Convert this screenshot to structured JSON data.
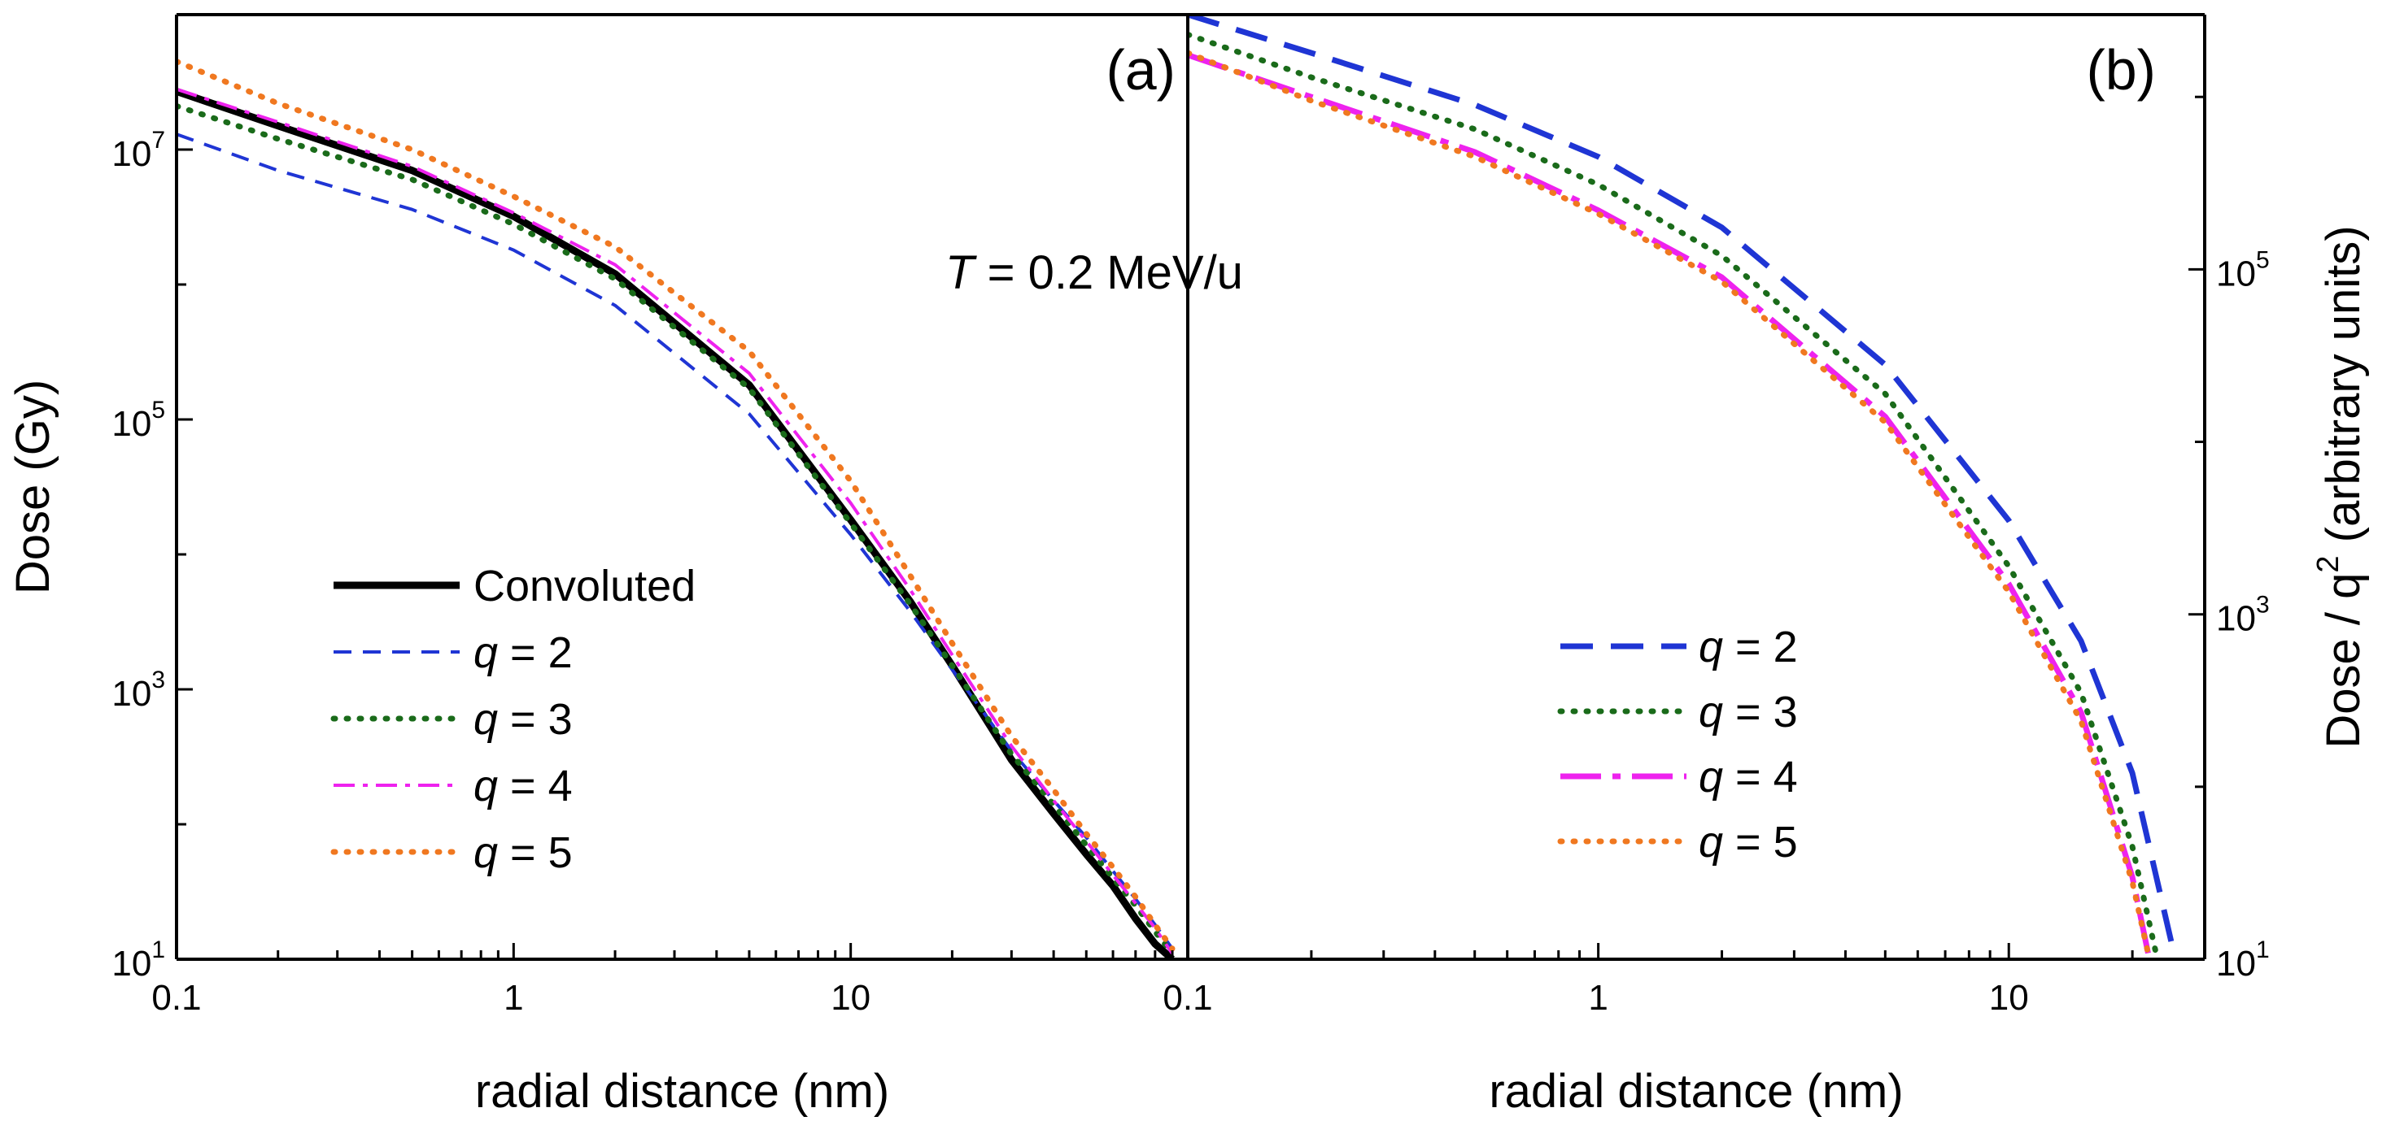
{
  "chart_data": [
    {
      "id": "a",
      "type": "line",
      "panel_label": "(a)",
      "xlabel": "radial distance (nm)",
      "ylabel": "Dose (Gy)",
      "xscale": "log",
      "yscale": "log",
      "xlim": [
        0.1,
        100
      ],
      "ylim": [
        10,
        100000000
      ],
      "xticks": [
        {
          "value": 0.1,
          "label": "0.1"
        },
        {
          "value": 1,
          "label": "1"
        },
        {
          "value": 10,
          "label": "10"
        }
      ],
      "yticks": [
        {
          "value": 10,
          "base": "10",
          "exp": "1"
        },
        {
          "value": 1000,
          "base": "10",
          "exp": "3"
        },
        {
          "value": 100000,
          "base": "10",
          "exp": "5"
        },
        {
          "value": 10000000,
          "base": "10",
          "exp": "7"
        }
      ],
      "annotation": {
        "italic": "T",
        "text": " = 0.2 MeV/u"
      },
      "legend_position": "lower-left",
      "series": [
        {
          "name": "Convoluted",
          "legend_text": "Convoluted",
          "legend_q": false,
          "color": "#000000",
          "style": "solid",
          "width": 9,
          "x": [
            0.1,
            0.2,
            0.5,
            1,
            2,
            5,
            10,
            15,
            20,
            30,
            40,
            50,
            60,
            70,
            80,
            90
          ],
          "y": [
            27000000,
            15000000,
            7000000,
            3200000,
            1200000,
            180000,
            18000,
            4500,
            1500,
            300,
            120,
            60,
            35,
            20,
            13,
            10
          ]
        },
        {
          "name": "q = 2",
          "legend_text": " = 2",
          "legend_q": true,
          "color": "#1f35d4",
          "style": "dash-short",
          "width": 4,
          "x": [
            0.1,
            0.2,
            0.5,
            1,
            2,
            5,
            10,
            15,
            20,
            30,
            40,
            50,
            60,
            70,
            80,
            90
          ],
          "y": [
            13000000,
            7000000,
            3600000,
            1800000,
            700000,
            110000,
            14000,
            3800,
            1400,
            350,
            150,
            80,
            45,
            28,
            18,
            12
          ]
        },
        {
          "name": "q = 3",
          "legend_text": " = 3",
          "legend_q": true,
          "color": "#1a6b1a",
          "style": "dot",
          "width": 7,
          "x": [
            0.1,
            0.2,
            0.5,
            1,
            2,
            5,
            10,
            15,
            20,
            30,
            40,
            50,
            60,
            70,
            80,
            90
          ],
          "y": [
            21000000,
            12000000,
            6000000,
            2800000,
            1100000,
            170000,
            17000,
            4300,
            1500,
            330,
            140,
            70,
            40,
            25,
            16,
            11
          ]
        },
        {
          "name": "q = 4",
          "legend_text": " = 4",
          "legend_q": true,
          "color": "#ee22ee",
          "style": "dashdot",
          "width": 4,
          "x": [
            0.1,
            0.2,
            0.5,
            1,
            2,
            5,
            10,
            15,
            20,
            30,
            40,
            50,
            60,
            70,
            80,
            90
          ],
          "y": [
            28000000,
            16000000,
            7500000,
            3400000,
            1400000,
            220000,
            24000,
            5500,
            1800,
            380,
            150,
            75,
            42,
            26,
            17,
            11
          ]
        },
        {
          "name": "q = 5",
          "legend_text": " = 5",
          "legend_q": true,
          "color": "#f07820",
          "style": "dot",
          "width": 7,
          "x": [
            0.1,
            0.2,
            0.5,
            1,
            2,
            5,
            10,
            15,
            20,
            30,
            40,
            50,
            60,
            70,
            80,
            90
          ],
          "y": [
            45000000,
            22000000,
            10000000,
            4500000,
            1900000,
            320000,
            35000,
            7000,
            2200,
            450,
            180,
            85,
            48,
            29,
            18,
            12
          ]
        }
      ]
    },
    {
      "id": "b",
      "type": "line",
      "panel_label": "(b)",
      "xlabel": "radial distance (nm)",
      "ylabel_prefix": "Dose / q",
      "ylabel_sup": "2",
      "ylabel_suffix": " (arbitrary units)",
      "xscale": "log",
      "yscale": "log",
      "xlim": [
        0.1,
        30
      ],
      "ylim": [
        10,
        3000000
      ],
      "xticks": [
        {
          "value": 0.1,
          "label": "0.1"
        },
        {
          "value": 1,
          "label": "1"
        },
        {
          "value": 10,
          "label": "10"
        }
      ],
      "yticks": [
        {
          "value": 10,
          "base": "10",
          "exp": "1"
        },
        {
          "value": 1000,
          "base": "10",
          "exp": "3"
        },
        {
          "value": 100000,
          "base": "10",
          "exp": "5"
        }
      ],
      "legend_position": "lower-right",
      "series": [
        {
          "name": "q = 2",
          "legend_text": " = 2",
          "legend_q": true,
          "color": "#1f35d4",
          "style": "dash-long",
          "width": 7,
          "x": [
            0.1,
            0.2,
            0.5,
            1,
            2,
            5,
            10,
            15,
            20,
            25
          ],
          "y": [
            3000000,
            1800000,
            900000,
            450000,
            175000,
            28000,
            3500,
            700,
            120,
            12
          ]
        },
        {
          "name": "q = 3",
          "legend_text": " = 3",
          "legend_q": true,
          "color": "#1a6b1a",
          "style": "dot",
          "width": 7,
          "x": [
            0.1,
            0.2,
            0.5,
            1,
            2,
            5,
            10,
            15,
            20,
            23
          ],
          "y": [
            2300000,
            1300000,
            650000,
            310000,
            120000,
            19000,
            1900,
            350,
            45,
            10
          ]
        },
        {
          "name": "q = 4",
          "legend_text": " = 4",
          "legend_q": true,
          "color": "#ee22ee",
          "style": "dashdot-long",
          "width": 7,
          "x": [
            0.1,
            0.2,
            0.5,
            1,
            2,
            5,
            10,
            15,
            20,
            22
          ],
          "y": [
            1750000,
            1000000,
            480000,
            220000,
            90000,
            14000,
            1500,
            270,
            30,
            10
          ]
        },
        {
          "name": "q = 5",
          "legend_text": " = 5",
          "legend_q": true,
          "color": "#f07820",
          "style": "dot",
          "width": 7,
          "x": [
            0.1,
            0.2,
            0.5,
            1,
            2,
            5,
            10,
            15,
            20,
            22
          ],
          "y": [
            1800000,
            950000,
            450000,
            210000,
            85000,
            13000,
            1350,
            240,
            28,
            10
          ]
        }
      ]
    }
  ]
}
